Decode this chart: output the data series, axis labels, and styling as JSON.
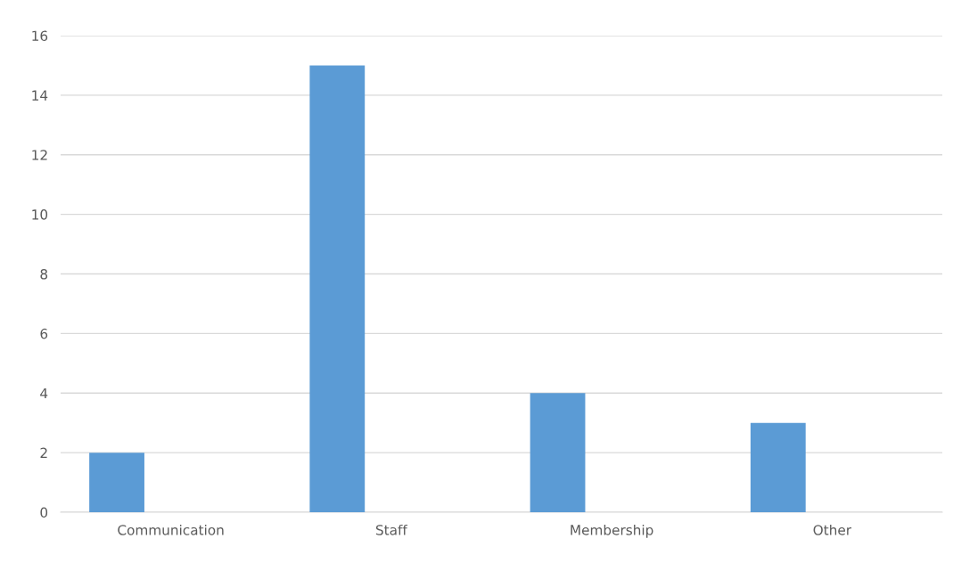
{
  "chart_data": {
    "type": "bar",
    "categories": [
      "Communication",
      "Staff",
      "Membership",
      "Other"
    ],
    "values": [
      2,
      15,
      4,
      3
    ],
    "color": "#5b9bd5",
    "ylim": [
      0,
      16
    ],
    "yticks": [
      0,
      2,
      4,
      6,
      8,
      10,
      12,
      14,
      16
    ],
    "grid": "y"
  }
}
